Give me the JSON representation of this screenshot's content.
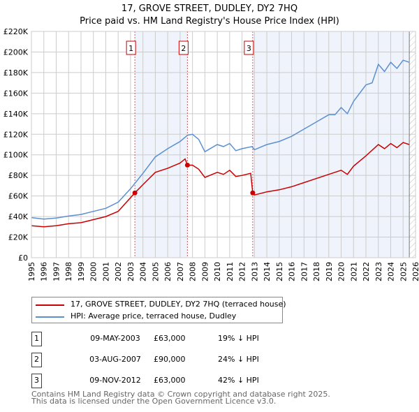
{
  "title": "17, GROVE STREET, DUDLEY, DY2 7HQ",
  "subtitle": "Price paid vs. HM Land Registry's House Price Index (HPI)",
  "chart_data": {
    "type": "line",
    "title": "17, GROVE STREET, DUDLEY, DY2 7HQ — Price paid vs. HM Land Registry's House Price Index (HPI)",
    "xlim": [
      1995,
      2026
    ],
    "ylim": [
      0,
      220000
    ],
    "x_ticks": [
      "1995",
      "1996",
      "1997",
      "1998",
      "1999",
      "2000",
      "2001",
      "2002",
      "2003",
      "2004",
      "2005",
      "2006",
      "2007",
      "2008",
      "2009",
      "2010",
      "2011",
      "2012",
      "2013",
      "2014",
      "2015",
      "2016",
      "2017",
      "2018",
      "2019",
      "2020",
      "2021",
      "2022",
      "2023",
      "2024",
      "2025",
      "2026"
    ],
    "y_ticks": [
      {
        "v": 0,
        "l": "£0"
      },
      {
        "v": 20000,
        "l": "£20K"
      },
      {
        "v": 40000,
        "l": "£40K"
      },
      {
        "v": 60000,
        "l": "£60K"
      },
      {
        "v": 80000,
        "l": "£80K"
      },
      {
        "v": 100000,
        "l": "£100K"
      },
      {
        "v": 120000,
        "l": "£120K"
      },
      {
        "v": 140000,
        "l": "£140K"
      },
      {
        "v": 160000,
        "l": "£160K"
      },
      {
        "v": 180000,
        "l": "£180K"
      },
      {
        "v": 200000,
        "l": "£200K"
      },
      {
        "v": 220000,
        "l": "£220K"
      }
    ],
    "grid": true,
    "series": [
      {
        "name": "17, GROVE STREET, DUDLEY, DY2 7HQ (terraced house)",
        "color": "#cc0000",
        "x": [
          1995,
          1996,
          1997,
          1998,
          1999,
          2000,
          2001,
          2002,
          2003.35,
          2004,
          2005,
          2006,
          2007,
          2007.4,
          2007.6,
          2008,
          2008.5,
          2009,
          2010,
          2010.5,
          2011,
          2011.5,
          2012,
          2012.7,
          2012.86,
          2013,
          2014,
          2015,
          2016,
          2017,
          2018,
          2019,
          2020,
          2020.5,
          2021,
          2022,
          2023,
          2023.5,
          2024,
          2024.5,
          2025,
          2025.5
        ],
        "y": [
          31000,
          30000,
          31000,
          33000,
          34000,
          37000,
          40000,
          45000,
          63000,
          71000,
          83000,
          87000,
          92000,
          96000,
          90000,
          90000,
          86000,
          78000,
          83000,
          81000,
          85000,
          79000,
          80000,
          82000,
          63000,
          61000,
          64000,
          66000,
          69000,
          73000,
          77000,
          81000,
          85000,
          81000,
          89000,
          99000,
          110000,
          106000,
          111000,
          107000,
          112000,
          110000
        ]
      },
      {
        "name": "HPI: Average price, terraced house, Dudley",
        "color": "#5b8fd0",
        "x": [
          1995,
          1996,
          1997,
          1998,
          1999,
          2000,
          2001,
          2002,
          2003,
          2004,
          2005,
          2006,
          2007,
          2007.6,
          2008,
          2008.5,
          2009,
          2010,
          2010.5,
          2011,
          2011.5,
          2012,
          2012.8,
          2013,
          2014,
          2015,
          2016,
          2017,
          2018,
          2019,
          2019.5,
          2020,
          2020.5,
          2021,
          2022,
          2022.5,
          2023,
          2023.5,
          2024,
          2024.5,
          2025,
          2025.5
        ],
        "y": [
          39000,
          37500,
          38500,
          40500,
          42000,
          45000,
          48000,
          54000,
          67000,
          82000,
          98000,
          106000,
          113000,
          119000,
          120000,
          115000,
          103000,
          110000,
          108000,
          111000,
          104000,
          106000,
          108000,
          105000,
          110000,
          113000,
          118000,
          125000,
          132000,
          139000,
          139000,
          146000,
          140000,
          152000,
          168000,
          170000,
          188000,
          181000,
          190000,
          184000,
          192000,
          190000
        ]
      }
    ],
    "sales": [
      {
        "label": "1",
        "x": 2003.35,
        "y": 63000,
        "date": "09-MAY-2003",
        "price": "£63,000",
        "hpi": "19% ↓ HPI"
      },
      {
        "label": "2",
        "x": 2007.59,
        "y": 90000,
        "date": "03-AUG-2007",
        "price": "£90,000",
        "hpi": "24% ↓ HPI"
      },
      {
        "label": "3",
        "x": 2012.86,
        "y": 63000,
        "date": "09-NOV-2012",
        "price": "£63,000",
        "hpi": "42% ↓ HPI"
      }
    ],
    "shaded_ranges": [
      [
        2003.35,
        2007.59
      ],
      [
        2012.86,
        2025.5
      ]
    ],
    "hatched_from": 2025.5,
    "legend_position": "below"
  },
  "legend": {
    "items": [
      "17, GROVE STREET, DUDLEY, DY2 7HQ (terraced house)",
      "HPI: Average price, terraced house, Dudley"
    ]
  },
  "footer": {
    "line1": "Contains HM Land Registry data © Crown copyright and database right 2025.",
    "line2": "This data is licensed under the Open Government Licence v3.0."
  }
}
